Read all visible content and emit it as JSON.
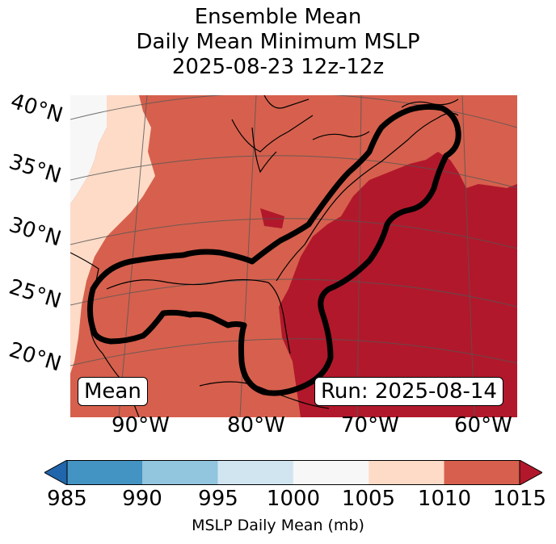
{
  "title": {
    "line1": "Ensemble Mean",
    "line2": "Daily Mean Minimum MSLP",
    "line3": "2025-08-23 12z-12z"
  },
  "map": {
    "lat_labels": [
      "40°N",
      "35°N",
      "30°N",
      "25°N",
      "20°N"
    ],
    "lon_labels": [
      "90°W",
      "80°W",
      "70°W",
      "60°W"
    ],
    "legend_box": "Mean",
    "run_box": "Run: 2025-08-14"
  },
  "colorbar": {
    "ticks": [
      "985",
      "990",
      "995",
      "1000",
      "1005",
      "1010",
      "1015"
    ],
    "label": "MSLP Daily Mean (mb)",
    "colors": {
      "below": "#2166ac",
      "985-990": "#4393c3",
      "990-995": "#92c5de",
      "995-1000": "#d1e5f0",
      "1000-1005": "#f7f7f7",
      "1005-1010": "#fddbc7",
      "1010-1015": "#d6604d",
      "above": "#b2182b"
    }
  }
}
